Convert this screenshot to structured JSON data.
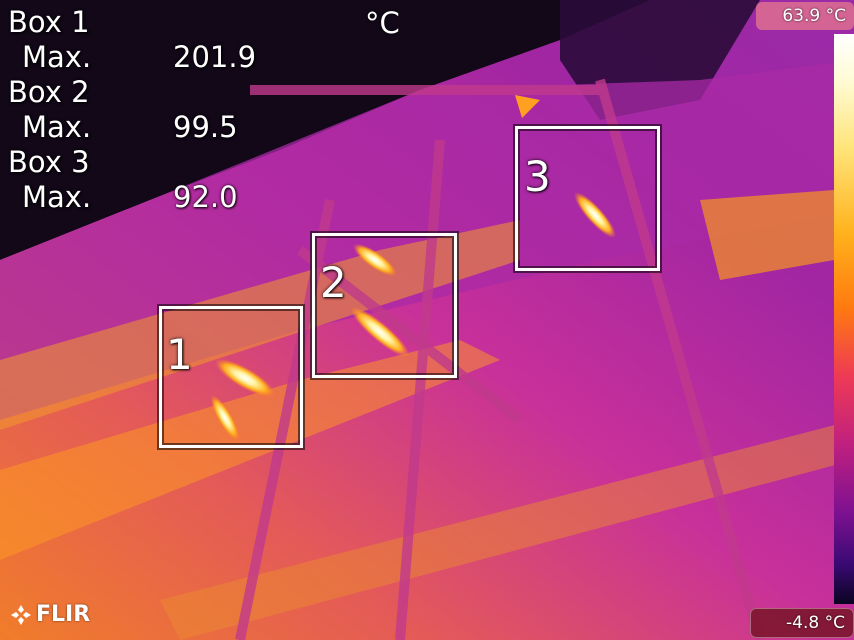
{
  "measurements": {
    "unit": "°C",
    "boxes": [
      {
        "label": "Box 1",
        "max_label": "Max.",
        "max_value": "201.9"
      },
      {
        "label": "Box 2",
        "max_label": "Max.",
        "max_value": "99.5"
      },
      {
        "label": "Box 3",
        "max_label": "Max.",
        "max_value": "92.0"
      }
    ]
  },
  "box_numbers": [
    "1",
    "2",
    "3"
  ],
  "scale": {
    "max": "63.9 °C",
    "min": "-4.8 °C"
  },
  "brand": {
    "logo_text": "FLIR",
    "logo_icon": "flir-logo-icon"
  },
  "colors": {
    "hot_white": "#ffffff",
    "yellow": "#ffd84a",
    "orange": "#ff8a1a",
    "magenta": "#c2229a",
    "purple": "#7a1a8a",
    "dark": "#120818"
  }
}
